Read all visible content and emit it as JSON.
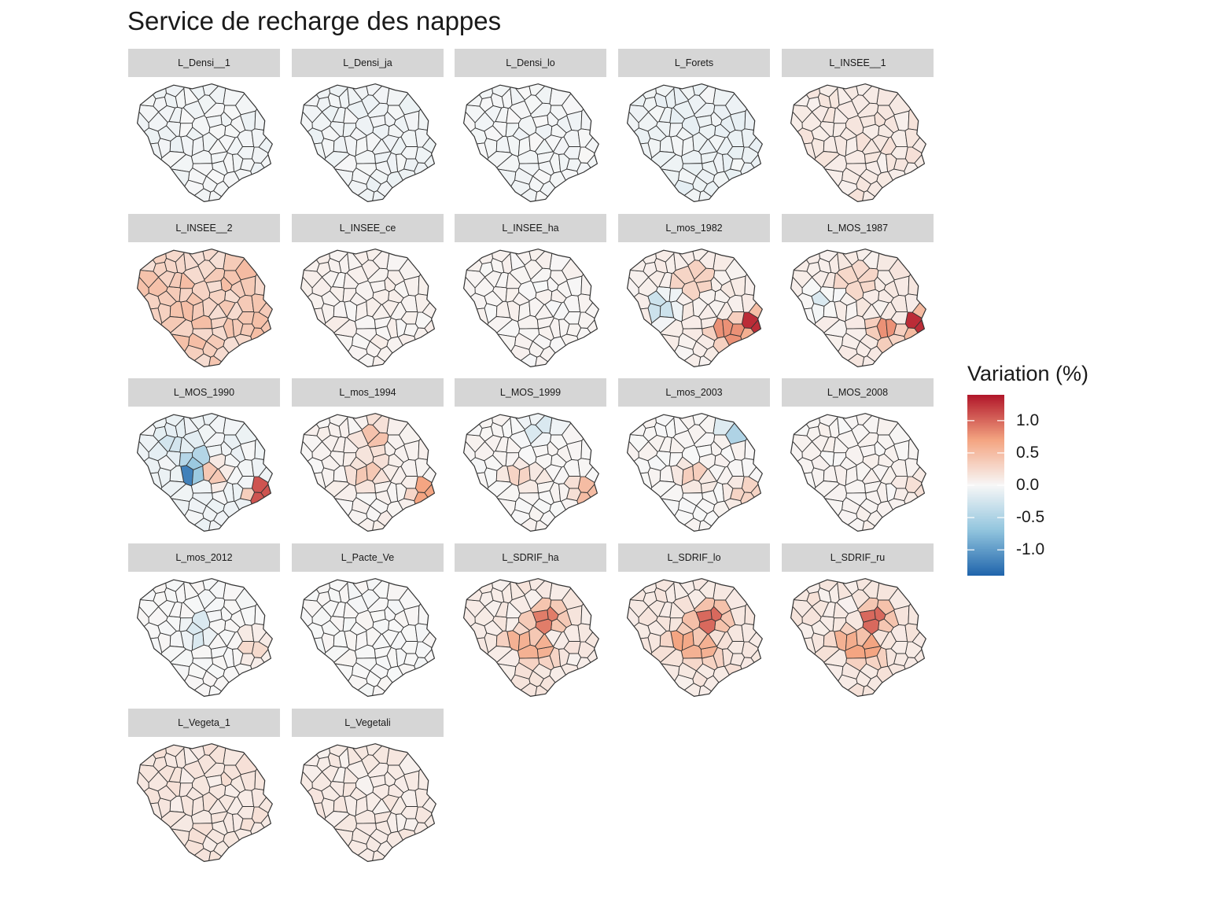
{
  "title": "Service de recharge des nappes",
  "legend": {
    "title": "Variation (%)",
    "ticks": [
      {
        "value": 1.0,
        "label": "1.0"
      },
      {
        "value": 0.5,
        "label": "0.5"
      },
      {
        "value": 0.0,
        "label": "0.0"
      },
      {
        "value": -0.5,
        "label": "-0.5"
      },
      {
        "value": -1.0,
        "label": "-1.0"
      }
    ],
    "min": -1.4,
    "max": 1.4,
    "colors": {
      "low": "#2166ac",
      "mid_low": "#92c5de",
      "mid": "#f7f7f7",
      "mid_high": "#f4a582",
      "high": "#b2182b"
    }
  },
  "map_style": {
    "border_color": "#333333",
    "fill_neutral": "#f7f7f7"
  },
  "chart_data": {
    "type": "heatmap",
    "panels": [
      {
        "label": "L_Densi__1",
        "base": -0.04,
        "hot": []
      },
      {
        "label": "L_Densi_ja",
        "base": -0.05,
        "hot": []
      },
      {
        "label": "L_Densi_lo",
        "base": -0.03,
        "hot": []
      },
      {
        "label": "L_Forets",
        "base": -0.07,
        "hot": []
      },
      {
        "label": "L_INSEE__1",
        "base": 0.12,
        "hot": []
      },
      {
        "label": "L_INSEE__2",
        "base": 0.35,
        "hot": []
      },
      {
        "label": "L_INSEE_ce",
        "base": 0.05,
        "hot": []
      },
      {
        "label": "L_INSEE_ha",
        "base": 0.03,
        "hot": []
      },
      {
        "label": "L_mos_1982",
        "base": 0.08,
        "hot": [
          [
            0.92,
            0.65,
            1.3
          ],
          [
            0.72,
            0.72,
            0.8
          ],
          [
            0.5,
            0.3,
            0.7
          ],
          [
            0.3,
            0.5,
            -0.3
          ]
        ]
      },
      {
        "label": "L_MOS_1987",
        "base": 0.1,
        "hot": [
          [
            0.92,
            0.65,
            1.3
          ],
          [
            0.7,
            0.72,
            0.8
          ],
          [
            0.5,
            0.3,
            0.6
          ],
          [
            0.25,
            0.45,
            -0.2
          ]
        ]
      },
      {
        "label": "L_MOS_1990",
        "base": -0.05,
        "hot": [
          [
            0.9,
            0.68,
            1.1
          ],
          [
            0.45,
            0.47,
            -1.2
          ],
          [
            0.55,
            0.5,
            0.4
          ],
          [
            0.3,
            0.25,
            -0.25
          ]
        ]
      },
      {
        "label": "L_mos_1994",
        "base": 0.05,
        "hot": [
          [
            0.9,
            0.68,
            0.7
          ],
          [
            0.5,
            0.5,
            0.4
          ],
          [
            0.55,
            0.2,
            0.45
          ]
        ]
      },
      {
        "label": "L_MOS_1999",
        "base": 0.02,
        "hot": [
          [
            0.88,
            0.67,
            0.5
          ],
          [
            0.55,
            0.15,
            -0.2
          ],
          [
            0.45,
            0.55,
            0.3
          ]
        ]
      },
      {
        "label": "L_mos_2003",
        "base": 0.02,
        "hot": [
          [
            0.8,
            0.15,
            -0.5
          ],
          [
            0.5,
            0.55,
            0.35
          ],
          [
            0.85,
            0.68,
            0.3
          ]
        ]
      },
      {
        "label": "L_MOS_2008",
        "base": 0.04,
        "hot": [
          [
            0.88,
            0.65,
            0.2
          ]
        ]
      },
      {
        "label": "L_mos_2012",
        "base": 0.0,
        "hot": [
          [
            0.45,
            0.45,
            -0.2
          ],
          [
            0.85,
            0.6,
            0.25
          ]
        ]
      },
      {
        "label": "L_Pacte_Ve",
        "base": 0.0,
        "hot": []
      },
      {
        "label": "L_SDRIF_ha",
        "base": 0.12,
        "hot": [
          [
            0.6,
            0.35,
            0.9
          ],
          [
            0.45,
            0.55,
            0.6
          ],
          [
            0.55,
            0.6,
            0.6
          ]
        ]
      },
      {
        "label": "L_SDRIF_lo",
        "base": 0.14,
        "hot": [
          [
            0.6,
            0.35,
            1.0
          ],
          [
            0.45,
            0.55,
            0.7
          ],
          [
            0.55,
            0.62,
            0.6
          ]
        ]
      },
      {
        "label": "L_SDRIF_ru",
        "base": 0.12,
        "hot": [
          [
            0.62,
            0.35,
            1.0
          ],
          [
            0.45,
            0.55,
            0.6
          ],
          [
            0.55,
            0.62,
            0.7
          ]
        ]
      },
      {
        "label": "L_Vegeta_1",
        "base": 0.15,
        "hot": []
      },
      {
        "label": "L_Vegetali",
        "base": 0.1,
        "hot": []
      }
    ]
  }
}
